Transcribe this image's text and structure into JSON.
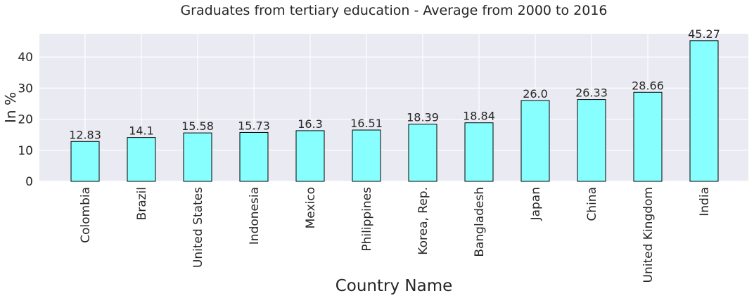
{
  "chart_data": {
    "type": "bar",
    "title": "Graduates from tertiary education - Average from 2000 to 2016",
    "xlabel": "Country Name",
    "ylabel": "In %",
    "categories": [
      "Colombia",
      "Brazil",
      "United States",
      "Indonesia",
      "Mexico",
      "Philippines",
      "Korea, Rep.",
      "Bangladesh",
      "Japan",
      "China",
      "United Kingdom",
      "India"
    ],
    "values": [
      12.83,
      14.1,
      15.58,
      15.73,
      16.3,
      16.51,
      18.39,
      18.84,
      26.0,
      26.33,
      28.66,
      45.27
    ],
    "data_labels": [
      "12.83",
      "14.1",
      "15.58",
      "15.73",
      "16.3",
      "16.51",
      "18.39",
      "18.84",
      "26.0",
      "26.33",
      "28.66",
      "45.27"
    ],
    "yticks": [
      "0",
      "10",
      "20",
      "30",
      "40"
    ],
    "ylim": [
      0,
      47.5
    ],
    "grid": true,
    "colors": {
      "bar": "#88ffff",
      "bar_edge": "#000000",
      "plot_bg": "#eaeaf2",
      "grid": "#ffffff",
      "text": "#262626"
    }
  }
}
